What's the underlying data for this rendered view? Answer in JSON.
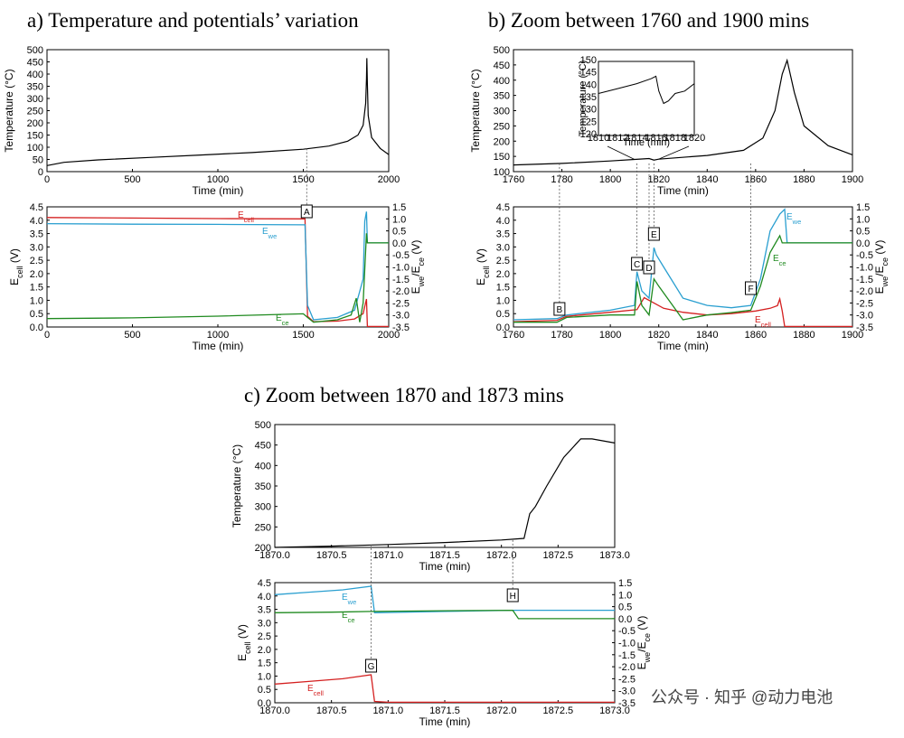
{
  "colors": {
    "ecell": "#d42020",
    "ewe": "#2a9fd0",
    "ece": "#1f8a1f",
    "temp": "#000000",
    "axis_right": "#2a8a9a"
  },
  "panels": {
    "a": {
      "title": "a) Temperature and potentials’ variation"
    },
    "b": {
      "title": "b) Zoom between 1760 and 1900 mins"
    },
    "c": {
      "title": "c) Zoom between 1870 and 1873 mins"
    }
  },
  "labels": {
    "temp_y": "Temperature (°C)",
    "time_x": "Time (min)",
    "ecell_y": "E",
    "ecell_y_sub": "cell",
    "ecell_y_unit": " (V)",
    "ewece_y": "E",
    "ewece_y_sub1": "we",
    "ewece_y_mid": "/E",
    "ewece_y_sub2": "ce",
    "ewece_y_unit": " (V)",
    "legend_ecell": "E",
    "legend_ecell_sub": "cell",
    "legend_ewe": "E",
    "legend_ewe_sub": "we",
    "legend_ece": "E",
    "legend_ece_sub": "ce"
  },
  "watermark": "公众号 · 知乎 @动力电池",
  "chart_data": [
    {
      "id": "a-temp",
      "type": "line",
      "xlabel": "Time (min)",
      "ylabel": "Temperature (°C)",
      "xlim": [
        0,
        2000
      ],
      "ylim": [
        0,
        500
      ],
      "xticks": [
        0,
        500,
        1000,
        1500,
        2000
      ],
      "yticks": [
        0,
        50,
        100,
        150,
        200,
        250,
        300,
        350,
        400,
        450,
        500
      ],
      "series": [
        {
          "name": "Temperature",
          "x": [
            0,
            100,
            300,
            600,
            900,
            1200,
            1500,
            1650,
            1760,
            1820,
            1850,
            1865,
            1870,
            1872,
            1875,
            1880,
            1900,
            1950,
            2000
          ],
          "y": [
            25,
            38,
            48,
            58,
            68,
            78,
            92,
            105,
            125,
            150,
            190,
            280,
            380,
            465,
            360,
            230,
            140,
            95,
            70
          ]
        }
      ],
      "annotations": [
        {
          "label": "A",
          "x": 1520
        }
      ]
    },
    {
      "id": "a-pot",
      "type": "line",
      "xlabel": "Time (min)",
      "ylabel": "Ecell (V)",
      "y2label": "Ewe/Ece (V)",
      "xlim": [
        0,
        2000
      ],
      "ylim": [
        0,
        4.5
      ],
      "y2lim": [
        -3.5,
        1.5
      ],
      "xticks": [
        0,
        500,
        1000,
        1500,
        2000
      ],
      "yticks": [
        0,
        0.5,
        1,
        1.5,
        2,
        2.5,
        3,
        3.5,
        4,
        4.5
      ],
      "y2ticks": [
        -3.5,
        -3,
        -2.5,
        -2,
        -1.5,
        -1,
        -0.5,
        0,
        0.5,
        1,
        1.5
      ],
      "series": [
        {
          "name": "Ecell",
          "axis": "left",
          "x": [
            0,
            500,
            1000,
            1510,
            1525,
            1560,
            1700,
            1800,
            1850,
            1870,
            1875,
            2000
          ],
          "y": [
            4.1,
            4.08,
            4.06,
            4.05,
            0.4,
            0.2,
            0.22,
            0.3,
            0.5,
            1.05,
            0.02,
            0.02
          ]
        },
        {
          "name": "Ewe",
          "axis": "right",
          "x": [
            0,
            500,
            1000,
            1510,
            1525,
            1560,
            1700,
            1800,
            1850,
            1860,
            1870,
            1875,
            2000
          ],
          "y": [
            0.8,
            0.78,
            0.77,
            0.75,
            -2.6,
            -3.2,
            -3.1,
            -2.8,
            -1.5,
            0.9,
            1.3,
            0.0,
            0.0
          ]
        },
        {
          "name": "Ece",
          "axis": "right",
          "x": [
            0,
            500,
            1000,
            1500,
            1525,
            1560,
            1700,
            1780,
            1810,
            1830,
            1850,
            1870,
            1875,
            2000
          ],
          "y": [
            -3.15,
            -3.12,
            -3.05,
            -2.95,
            -3.1,
            -3.3,
            -3.2,
            -3.0,
            -2.3,
            -3.3,
            -2.5,
            0.4,
            0.0,
            0.0
          ]
        }
      ],
      "annotations": [
        {
          "label": "A",
          "x": 1520
        }
      ]
    },
    {
      "id": "b-temp",
      "type": "line",
      "xlabel": "Time (min)",
      "ylabel": "Temperature (°C)",
      "xlim": [
        1760,
        1900
      ],
      "ylim": [
        100,
        500
      ],
      "xticks": [
        1760,
        1780,
        1800,
        1820,
        1840,
        1860,
        1880,
        1900
      ],
      "yticks": [
        100,
        150,
        200,
        250,
        300,
        350,
        400,
        450,
        500
      ],
      "series": [
        {
          "name": "Temperature",
          "x": [
            1760,
            1780,
            1800,
            1810,
            1816,
            1818,
            1820,
            1840,
            1855,
            1863,
            1868,
            1871,
            1873,
            1876,
            1880,
            1890,
            1900
          ],
          "y": [
            122,
            127,
            135,
            140,
            143,
            138,
            141,
            153,
            170,
            210,
            300,
            420,
            465,
            360,
            250,
            185,
            155
          ]
        }
      ],
      "inset": {
        "xlim": [
          1810,
          1820
        ],
        "ylim": [
          120,
          150
        ],
        "xticks": [
          1810,
          1812,
          1814,
          1816,
          1818,
          1820
        ],
        "yticks": [
          120,
          125,
          130,
          135,
          140,
          145,
          150
        ],
        "xlabel": "Time (min)",
        "ylabel": "Temperature (°C)",
        "x": [
          1810,
          1812,
          1814,
          1815.5,
          1816,
          1816.3,
          1816.8,
          1817.3,
          1818,
          1819,
          1820
        ],
        "y": [
          137,
          139,
          141,
          143,
          144,
          138,
          133,
          134,
          137,
          138,
          141
        ]
      },
      "annotations": [
        {
          "label": "B",
          "x": 1779
        },
        {
          "label": "C",
          "x": 1811
        },
        {
          "label": "D",
          "x": 1816
        },
        {
          "label": "E",
          "x": 1818
        },
        {
          "label": "F",
          "x": 1858
        }
      ]
    },
    {
      "id": "b-pot",
      "type": "line",
      "xlabel": "Time (min)",
      "ylabel": "Ecell (V)",
      "y2label": "Ewe/Ece (V)",
      "xlim": [
        1760,
        1900
      ],
      "ylim": [
        0,
        4.5
      ],
      "y2lim": [
        -3.5,
        1.5
      ],
      "xticks": [
        1760,
        1780,
        1800,
        1820,
        1840,
        1860,
        1880,
        1900
      ],
      "yticks": [
        0,
        0.5,
        1,
        1.5,
        2,
        2.5,
        3,
        3.5,
        4,
        4.5
      ],
      "y2ticks": [
        -3.5,
        -3,
        -2.5,
        -2,
        -1.5,
        -1,
        -0.5,
        0,
        0.5,
        1,
        1.5
      ],
      "series": [
        {
          "name": "Ecell",
          "axis": "left",
          "x": [
            1760,
            1778,
            1782,
            1800,
            1811,
            1814,
            1818,
            1822,
            1830,
            1840,
            1850,
            1860,
            1866,
            1869,
            1870,
            1871,
            1872,
            1900
          ],
          "y": [
            0.2,
            0.25,
            0.4,
            0.55,
            0.65,
            1.1,
            0.9,
            0.7,
            0.55,
            0.45,
            0.5,
            0.6,
            0.7,
            0.8,
            1.05,
            0.6,
            0.02,
            0.02
          ]
        },
        {
          "name": "Ewe",
          "axis": "right",
          "x": [
            1760,
            1778,
            1782,
            1800,
            1810,
            1811,
            1813,
            1816,
            1818,
            1819,
            1822,
            1830,
            1840,
            1850,
            1858,
            1862,
            1866,
            1870,
            1872,
            1873,
            1900
          ],
          "y": [
            -3.2,
            -3.15,
            -3.0,
            -2.8,
            -2.6,
            -1.2,
            -2.0,
            -2.3,
            -0.2,
            -0.5,
            -1.0,
            -2.3,
            -2.6,
            -2.7,
            -2.6,
            -1.5,
            0.5,
            1.2,
            1.4,
            0.0,
            0.0
          ]
        },
        {
          "name": "Ece",
          "axis": "right",
          "x": [
            1760,
            1778,
            1782,
            1800,
            1810,
            1811,
            1813,
            1816,
            1818,
            1820,
            1825,
            1830,
            1840,
            1850,
            1858,
            1862,
            1866,
            1870,
            1871,
            1900
          ],
          "y": [
            -3.3,
            -3.3,
            -3.1,
            -3.0,
            -3.0,
            -1.6,
            -2.6,
            -3.0,
            -1.5,
            -1.8,
            -2.5,
            -3.2,
            -3.0,
            -2.9,
            -2.8,
            -1.8,
            -0.4,
            0.3,
            0.0,
            0.0
          ]
        }
      ],
      "annotations": [
        {
          "label": "B",
          "x": 1779
        },
        {
          "label": "C",
          "x": 1811
        },
        {
          "label": "D",
          "x": 1816
        },
        {
          "label": "E",
          "x": 1818
        },
        {
          "label": "F",
          "x": 1858
        }
      ]
    },
    {
      "id": "c-temp",
      "type": "line",
      "xlabel": "Time (min)",
      "ylabel": "Temperature (°C)",
      "xlim": [
        1870,
        1873
      ],
      "ylim": [
        200,
        500
      ],
      "xticks": [
        1870.0,
        1870.5,
        1871.0,
        1871.5,
        1872.0,
        1872.5,
        1873.0
      ],
      "yticks": [
        200,
        250,
        300,
        350,
        400,
        450,
        500
      ],
      "series": [
        {
          "name": "Temperature",
          "x": [
            1870,
            1870.5,
            1871,
            1871.5,
            1872,
            1872.2,
            1872.25,
            1872.3,
            1872.4,
            1872.55,
            1872.7,
            1872.8,
            1873
          ],
          "y": [
            200,
            203,
            207,
            212,
            218,
            222,
            282,
            300,
            350,
            420,
            465,
            465,
            455
          ]
        }
      ],
      "annotations": [
        {
          "label": "G",
          "x": 1870.85
        },
        {
          "label": "H",
          "x": 1872.1
        }
      ]
    },
    {
      "id": "c-pot",
      "type": "line",
      "xlabel": "Time (min)",
      "ylabel": "Ecell (V)",
      "y2label": "Ewe/Ece (V)",
      "xlim": [
        1870,
        1873
      ],
      "ylim": [
        0,
        4.5
      ],
      "y2lim": [
        -3.5,
        1.5
      ],
      "xticks": [
        1870.0,
        1870.5,
        1871.0,
        1871.5,
        1872.0,
        1872.5,
        1873.0
      ],
      "yticks": [
        0,
        0.5,
        1,
        1.5,
        2,
        2.5,
        3,
        3.5,
        4,
        4.5
      ],
      "y2ticks": [
        -3.5,
        -3,
        -2.5,
        -2,
        -1.5,
        -1,
        -0.5,
        0,
        0.5,
        1,
        1.5
      ],
      "series": [
        {
          "name": "Ecell",
          "axis": "left",
          "x": [
            1870,
            1870.3,
            1870.6,
            1870.85,
            1870.88,
            1871,
            1872,
            1873
          ],
          "y": [
            0.7,
            0.8,
            0.9,
            1.05,
            0.05,
            0.02,
            0.02,
            0.02
          ]
        },
        {
          "name": "Ewe",
          "axis": "right",
          "x": [
            1870,
            1870.3,
            1870.6,
            1870.85,
            1870.88,
            1871.5,
            1872.1,
            1873
          ],
          "y": [
            1.0,
            1.1,
            1.2,
            1.35,
            0.25,
            0.3,
            0.35,
            0.35
          ]
        },
        {
          "name": "Ece",
          "axis": "right",
          "x": [
            1870,
            1870.5,
            1870.85,
            1871.5,
            1872.1,
            1872.15,
            1873
          ],
          "y": [
            0.25,
            0.27,
            0.3,
            0.33,
            0.35,
            0.0,
            0.0
          ]
        }
      ],
      "annotations": [
        {
          "label": "G",
          "x": 1870.85
        },
        {
          "label": "H",
          "x": 1872.1
        }
      ]
    }
  ]
}
